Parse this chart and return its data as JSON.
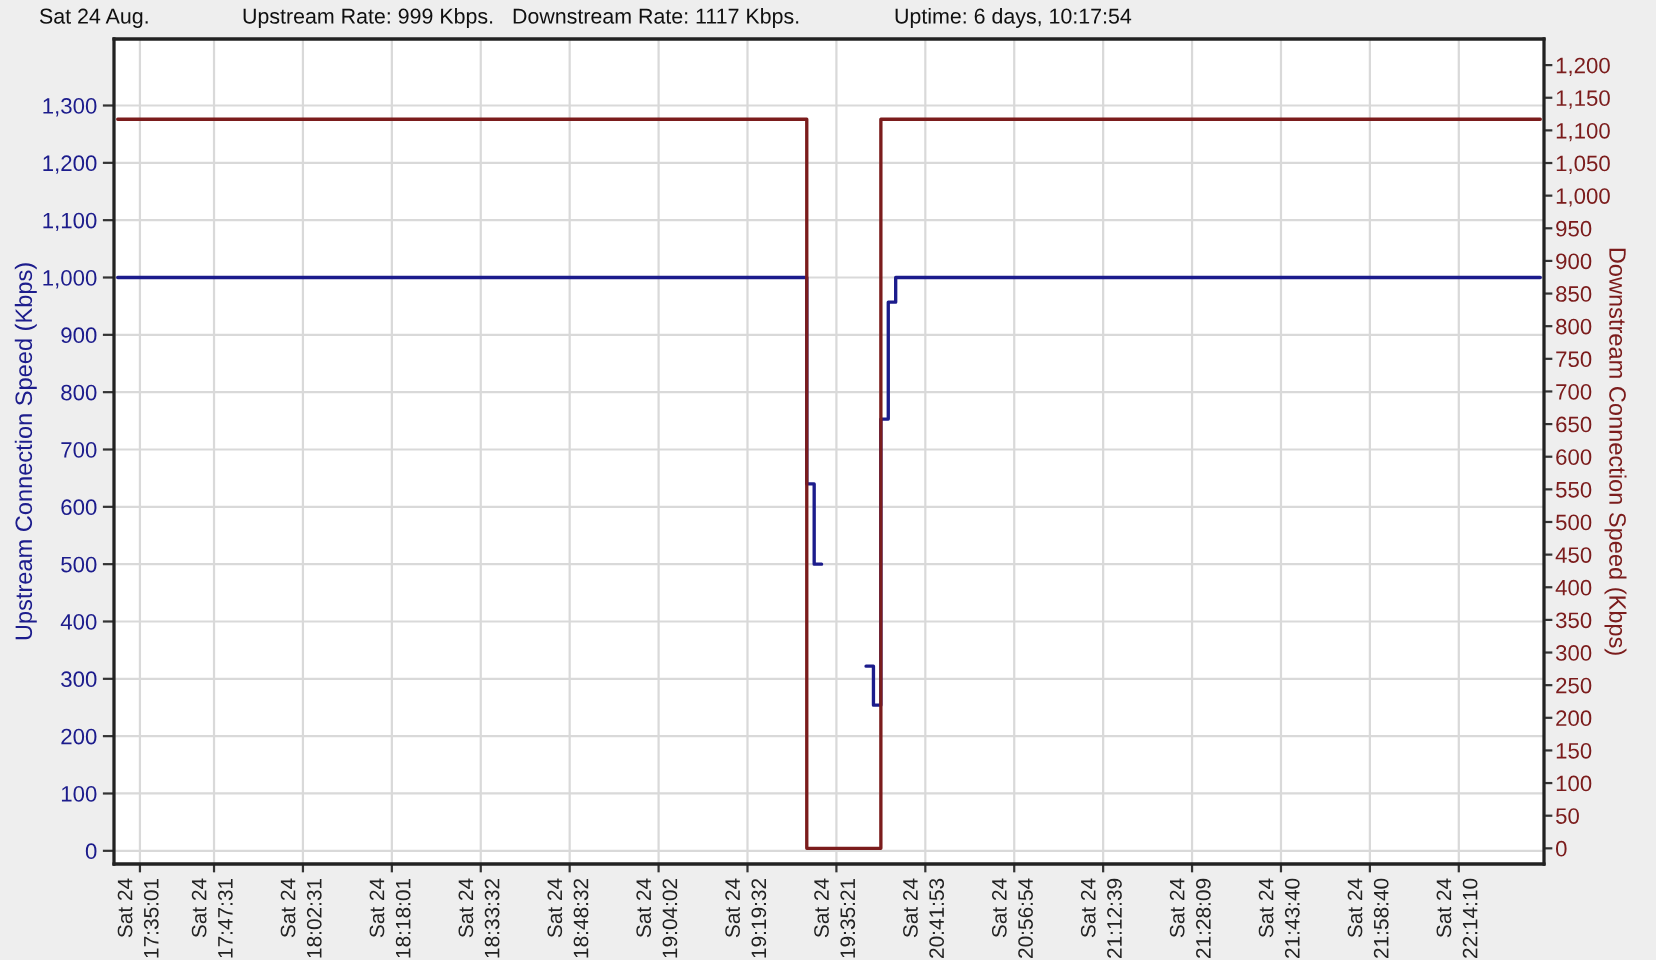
{
  "chart_data": {
    "type": "step",
    "annotations": [
      "Sat 24 Aug.",
      "Upstream Rate: 999 Kbps.",
      "Downstream Rate: 1117 Kbps.",
      "Uptime: 6 days, 10:17:54"
    ],
    "ylabel": "Upstream Connection Speed (Kbps)",
    "y2label": "Downstream Connection Speed (Kbps)",
    "categories": [
      null,
      null,
      null,
      "Sat 24\n17:35:01",
      null,
      null,
      null,
      null,
      null,
      null,
      null,
      null,
      null,
      "Sat 24\n17:47:31",
      null,
      null,
      null,
      null,
      null,
      null,
      null,
      null,
      null,
      null,
      null,
      "Sat 24\n18:02:31",
      null,
      null,
      null,
      null,
      null,
      null,
      null,
      null,
      null,
      null,
      null,
      "Sat 24\n18:18:01",
      null,
      null,
      null,
      null,
      null,
      null,
      null,
      null,
      null,
      null,
      null,
      "Sat 24\n18:33:32",
      null,
      null,
      null,
      null,
      null,
      null,
      null,
      null,
      null,
      null,
      null,
      "Sat 24\n18:48:32",
      null,
      null,
      null,
      null,
      null,
      null,
      null,
      null,
      null,
      null,
      null,
      "Sat 24\n19:04:02",
      null,
      null,
      null,
      null,
      null,
      null,
      null,
      null,
      null,
      null,
      null,
      "Sat 24\n19:19:32",
      null,
      null,
      null,
      null,
      null,
      null,
      null,
      null,
      null,
      null,
      null,
      "Sat 24\n19:35:21",
      null,
      null,
      null,
      null,
      null,
      null,
      null,
      null,
      null,
      null,
      null,
      "Sat 24\n20:41:53",
      null,
      null,
      null,
      null,
      null,
      null,
      null,
      null,
      null,
      null,
      null,
      "Sat 24\n20:56:54",
      null,
      null,
      null,
      null,
      null,
      null,
      null,
      null,
      null,
      null,
      null,
      "Sat 24\n21:12:39",
      null,
      null,
      null,
      null,
      null,
      null,
      null,
      null,
      null,
      null,
      null,
      "Sat 24\n21:28:09",
      null,
      null,
      null,
      null,
      null,
      null,
      null,
      null,
      null,
      null,
      null,
      "Sat 24\n21:43:40",
      null,
      null,
      null,
      null,
      null,
      null,
      null,
      null,
      null,
      null,
      null,
      "Sat 24\n21:58:40",
      null,
      null,
      null,
      null,
      null,
      null,
      null,
      null,
      null,
      null,
      null,
      "Sat 24\n22:14:10",
      null,
      null,
      null,
      null,
      null,
      null,
      null,
      null,
      null,
      null,
      null
    ],
    "series": [
      {
        "color": "#7b1c1c",
        "axis": "y2",
        "values": [
          1117,
          1117,
          1117,
          1117,
          1117,
          1117,
          1117,
          1117,
          1117,
          1117,
          1117,
          1117,
          1117,
          1117,
          1117,
          1117,
          1117,
          1117,
          1117,
          1117,
          1117,
          1117,
          1117,
          1117,
          1117,
          1117,
          1117,
          1117,
          1117,
          1117,
          1117,
          1117,
          1117,
          1117,
          1117,
          1117,
          1117,
          1117,
          1117,
          1117,
          1117,
          1117,
          1117,
          1117,
          1117,
          1117,
          1117,
          1117,
          1117,
          1117,
          1117,
          1117,
          1117,
          1117,
          1117,
          1117,
          1117,
          1117,
          1117,
          1117,
          1117,
          1117,
          1117,
          1117,
          1117,
          1117,
          1117,
          1117,
          1117,
          1117,
          1117,
          1117,
          1117,
          1117,
          1117,
          1117,
          1117,
          1117,
          1117,
          1117,
          1117,
          1117,
          1117,
          1117,
          1117,
          1117,
          1117,
          1117,
          1117,
          1117,
          1117,
          1117,
          1117,
          0,
          0,
          0,
          0,
          0,
          0,
          0,
          0,
          0,
          0,
          1117,
          1117,
          1117,
          1117,
          1117,
          1117,
          1117,
          1117,
          1117,
          1117,
          1117,
          1117,
          1117,
          1117,
          1117,
          1117,
          1117,
          1117,
          1117,
          1117,
          1117,
          1117,
          1117,
          1117,
          1117,
          1117,
          1117,
          1117,
          1117,
          1117,
          1117,
          1117,
          1117,
          1117,
          1117,
          1117,
          1117,
          1117,
          1117,
          1117,
          1117,
          1117,
          1117,
          1117,
          1117,
          1117,
          1117,
          1117,
          1117,
          1117,
          1117,
          1117,
          1117,
          1117,
          1117,
          1117,
          1117,
          1117,
          1117,
          1117,
          1117,
          1117,
          1117,
          1117,
          1117,
          1117,
          1117,
          1117,
          1117,
          1117,
          1117,
          1117,
          1117,
          1117,
          1117,
          1117,
          1117,
          1117,
          1117,
          1117,
          1117,
          1117,
          1117,
          1117,
          1117,
          1117,
          1117,
          1117,
          1117,
          1117
        ]
      },
      {
        "color": "#1c1c8c",
        "values": [
          1000,
          1000,
          1000,
          1000,
          1000,
          1000,
          1000,
          1000,
          1000,
          1000,
          1000,
          1000,
          1000,
          1000,
          1000,
          1000,
          1000,
          1000,
          1000,
          1000,
          1000,
          1000,
          1000,
          1000,
          1000,
          1000,
          1000,
          1000,
          1000,
          1000,
          1000,
          1000,
          1000,
          1000,
          1000,
          1000,
          1000,
          1000,
          1000,
          1000,
          1000,
          1000,
          1000,
          1000,
          1000,
          1000,
          1000,
          1000,
          1000,
          1000,
          1000,
          1000,
          1000,
          1000,
          1000,
          1000,
          1000,
          1000,
          1000,
          1000,
          1000,
          1000,
          1000,
          1000,
          1000,
          1000,
          1000,
          1000,
          1000,
          1000,
          1000,
          1000,
          1000,
          1000,
          1000,
          1000,
          1000,
          1000,
          1000,
          1000,
          1000,
          1000,
          1000,
          1000,
          1000,
          1000,
          1000,
          1000,
          1000,
          1000,
          1000,
          1000,
          1000,
          640,
          500,
          null,
          null,
          null,
          null,
          null,
          null,
          322,
          254,
          753,
          957,
          1000,
          1000,
          1000,
          1000,
          1000,
          1000,
          1000,
          1000,
          1000,
          1000,
          1000,
          1000,
          1000,
          1000,
          1000,
          1000,
          1000,
          1000,
          1000,
          1000,
          1000,
          1000,
          1000,
          1000,
          1000,
          1000,
          1000,
          1000,
          1000,
          1000,
          1000,
          1000,
          1000,
          1000,
          1000,
          1000,
          1000,
          1000,
          1000,
          1000,
          1000,
          1000,
          1000,
          1000,
          1000,
          1000,
          1000,
          1000,
          1000,
          1000,
          1000,
          1000,
          1000,
          1000,
          1000,
          1000,
          1000,
          1000,
          1000,
          1000,
          1000,
          1000,
          1000,
          1000,
          1000,
          1000,
          1000,
          1000,
          1000,
          1000,
          1000,
          1000,
          1000,
          1000,
          1000,
          1000,
          1000,
          1000,
          1000,
          1000,
          1000,
          1000,
          1000,
          1000,
          1000,
          1000,
          1000,
          1000
        ]
      }
    ],
    "ylim": [
      -23,
      1416
    ],
    "yticks": [
      0,
      100,
      200,
      300,
      400,
      500,
      600,
      700,
      800,
      900,
      {
        "value": 1000,
        "label": "1,000"
      },
      {
        "value": 1100,
        "label": "1,100"
      },
      {
        "value": 1200,
        "label": "1,200"
      },
      {
        "value": 1300,
        "label": "1,300"
      }
    ],
    "y2lim": [
      -24,
      1240
    ],
    "y2ticks": [
      0,
      50,
      100,
      150,
      200,
      250,
      300,
      350,
      400,
      450,
      500,
      550,
      600,
      650,
      700,
      750,
      800,
      850,
      900,
      950,
      {
        "value": 1000,
        "label": "1,000"
      },
      {
        "value": 1050,
        "label": "1,050"
      },
      {
        "value": 1100,
        "label": "1,100"
      },
      {
        "value": 1150,
        "label": "1,150"
      },
      {
        "value": 1200,
        "label": "1,200"
      }
    ],
    "grid": true
  }
}
